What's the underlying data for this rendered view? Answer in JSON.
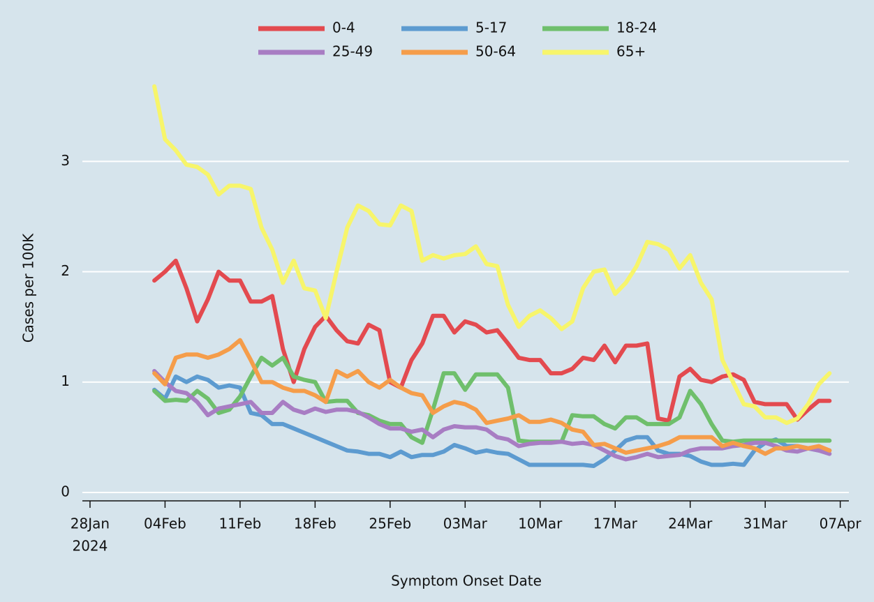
{
  "chart_data": {
    "type": "line",
    "xlabel": "Symptom Onset Date",
    "ylabel": "Cases per 100K",
    "x_year_label": "2024",
    "x": [
      "2024-02-03",
      "2024-02-04",
      "2024-02-05",
      "2024-02-06",
      "2024-02-07",
      "2024-02-08",
      "2024-02-09",
      "2024-02-10",
      "2024-02-11",
      "2024-02-12",
      "2024-02-13",
      "2024-02-14",
      "2024-02-15",
      "2024-02-16",
      "2024-02-17",
      "2024-02-18",
      "2024-02-19",
      "2024-02-20",
      "2024-02-21",
      "2024-02-22",
      "2024-02-23",
      "2024-02-24",
      "2024-02-25",
      "2024-02-26",
      "2024-02-27",
      "2024-02-28",
      "2024-02-29",
      "2024-03-01",
      "2024-03-02",
      "2024-03-03",
      "2024-03-04",
      "2024-03-05",
      "2024-03-06",
      "2024-03-07",
      "2024-03-08",
      "2024-03-09",
      "2024-03-10",
      "2024-03-11",
      "2024-03-12",
      "2024-03-13",
      "2024-03-14",
      "2024-03-15",
      "2024-03-16",
      "2024-03-17",
      "2024-03-18",
      "2024-03-19",
      "2024-03-20",
      "2024-03-21",
      "2024-03-22",
      "2024-03-23",
      "2024-03-24",
      "2024-03-25",
      "2024-03-26",
      "2024-03-27",
      "2024-03-28",
      "2024-03-29",
      "2024-03-30",
      "2024-03-31",
      "2024-04-01",
      "2024-04-02",
      "2024-04-03",
      "2024-04-04",
      "2024-04-05",
      "2024-04-06"
    ],
    "series": [
      {
        "name": "0-4",
        "color": "#e34a4f",
        "values": [
          1.92,
          2.0,
          2.1,
          1.85,
          1.55,
          1.75,
          2.0,
          1.92,
          1.92,
          1.73,
          1.73,
          1.78,
          1.3,
          1.0,
          1.3,
          1.5,
          1.6,
          1.47,
          1.37,
          1.35,
          1.52,
          1.47,
          1.0,
          0.95,
          1.2,
          1.35,
          1.6,
          1.6,
          1.45,
          1.55,
          1.52,
          1.45,
          1.47,
          1.35,
          1.22,
          1.2,
          1.2,
          1.08,
          1.08,
          1.12,
          1.22,
          1.2,
          1.33,
          1.18,
          1.33,
          1.33,
          1.35,
          0.67,
          0.65,
          1.05,
          1.12,
          1.02,
          1.0,
          1.05,
          1.07,
          1.02,
          0.82,
          0.8,
          0.8,
          0.8,
          0.66,
          0.75,
          0.83,
          0.83
        ]
      },
      {
        "name": "5-17",
        "color": "#5d9bd0",
        "values": [
          0.93,
          0.85,
          1.05,
          1.0,
          1.05,
          1.02,
          0.95,
          0.97,
          0.95,
          0.72,
          0.7,
          0.62,
          0.62,
          0.58,
          0.54,
          0.5,
          0.46,
          0.42,
          0.38,
          0.37,
          0.35,
          0.35,
          0.32,
          0.37,
          0.32,
          0.34,
          0.34,
          0.37,
          0.43,
          0.4,
          0.36,
          0.38,
          0.36,
          0.35,
          0.3,
          0.25,
          0.25,
          0.25,
          0.25,
          0.25,
          0.25,
          0.24,
          0.3,
          0.38,
          0.47,
          0.5,
          0.5,
          0.38,
          0.35,
          0.35,
          0.33,
          0.28,
          0.25,
          0.25,
          0.26,
          0.25,
          0.38,
          0.45,
          0.48,
          0.42,
          0.42,
          0.4,
          0.38,
          0.38
        ]
      },
      {
        "name": "18-24",
        "color": "#6fbf6c",
        "values": [
          0.92,
          0.83,
          0.84,
          0.83,
          0.92,
          0.85,
          0.72,
          0.75,
          0.87,
          1.05,
          1.22,
          1.15,
          1.22,
          1.05,
          1.02,
          1.0,
          0.82,
          0.83,
          0.83,
          0.72,
          0.7,
          0.65,
          0.62,
          0.62,
          0.5,
          0.45,
          0.75,
          1.08,
          1.08,
          0.93,
          1.07,
          1.07,
          1.07,
          0.95,
          0.47,
          0.46,
          0.46,
          0.46,
          0.46,
          0.7,
          0.69,
          0.69,
          0.62,
          0.58,
          0.68,
          0.68,
          0.62,
          0.62,
          0.62,
          0.68,
          0.92,
          0.8,
          0.62,
          0.47,
          0.46,
          0.47,
          0.47,
          0.47,
          0.47,
          0.47,
          0.47,
          0.47,
          0.47,
          0.47
        ]
      },
      {
        "name": "25-49",
        "color": "#a87dc3",
        "values": [
          1.1,
          1.0,
          0.92,
          0.9,
          0.82,
          0.7,
          0.76,
          0.78,
          0.8,
          0.82,
          0.72,
          0.72,
          0.82,
          0.75,
          0.72,
          0.76,
          0.73,
          0.75,
          0.75,
          0.73,
          0.68,
          0.62,
          0.58,
          0.58,
          0.55,
          0.57,
          0.5,
          0.57,
          0.6,
          0.59,
          0.59,
          0.57,
          0.5,
          0.48,
          0.42,
          0.44,
          0.45,
          0.45,
          0.46,
          0.44,
          0.45,
          0.43,
          0.38,
          0.33,
          0.3,
          0.32,
          0.35,
          0.32,
          0.33,
          0.34,
          0.38,
          0.4,
          0.4,
          0.4,
          0.42,
          0.43,
          0.45,
          0.45,
          0.42,
          0.38,
          0.37,
          0.4,
          0.38,
          0.35
        ]
      },
      {
        "name": "50-64",
        "color": "#f59d4a",
        "values": [
          1.08,
          0.98,
          1.22,
          1.25,
          1.25,
          1.22,
          1.25,
          1.3,
          1.38,
          1.2,
          1.0,
          1.0,
          0.95,
          0.92,
          0.92,
          0.88,
          0.82,
          1.1,
          1.05,
          1.1,
          1.0,
          0.95,
          1.02,
          0.95,
          0.9,
          0.88,
          0.72,
          0.78,
          0.82,
          0.8,
          0.75,
          0.63,
          0.65,
          0.67,
          0.7,
          0.64,
          0.64,
          0.66,
          0.63,
          0.57,
          0.55,
          0.43,
          0.44,
          0.4,
          0.36,
          0.38,
          0.4,
          0.42,
          0.45,
          0.5,
          0.5,
          0.5,
          0.5,
          0.42,
          0.45,
          0.42,
          0.4,
          0.35,
          0.4,
          0.4,
          0.42,
          0.4,
          0.42,
          0.38
        ]
      },
      {
        "name": "65+",
        "color": "#f7f56b",
        "values": [
          3.68,
          3.2,
          3.1,
          2.97,
          2.95,
          2.88,
          2.7,
          2.78,
          2.78,
          2.75,
          2.4,
          2.2,
          1.9,
          2.1,
          1.85,
          1.83,
          1.58,
          2.0,
          2.4,
          2.6,
          2.55,
          2.43,
          2.42,
          2.6,
          2.55,
          2.1,
          2.15,
          2.12,
          2.15,
          2.16,
          2.23,
          2.07,
          2.05,
          1.7,
          1.5,
          1.6,
          1.65,
          1.58,
          1.48,
          1.55,
          1.85,
          2.0,
          2.02,
          1.8,
          1.9,
          2.05,
          2.27,
          2.25,
          2.2,
          2.03,
          2.15,
          1.9,
          1.75,
          1.2,
          1.0,
          0.8,
          0.78,
          0.68,
          0.68,
          0.63,
          0.67,
          0.8,
          0.98,
          1.08
        ]
      }
    ],
    "xlim": [
      "2024-01-27",
      "2024-04-08"
    ],
    "xticks": [
      {
        "value": "2024-01-28",
        "label": "28Jan"
      },
      {
        "value": "2024-02-04",
        "label": "04Feb"
      },
      {
        "value": "2024-02-11",
        "label": "11Feb"
      },
      {
        "value": "2024-02-18",
        "label": "18Feb"
      },
      {
        "value": "2024-02-25",
        "label": "25Feb"
      },
      {
        "value": "2024-03-03",
        "label": "03Mar"
      },
      {
        "value": "2024-03-10",
        "label": "10Mar"
      },
      {
        "value": "2024-03-17",
        "label": "17Mar"
      },
      {
        "value": "2024-03-24",
        "label": "24Mar"
      },
      {
        "value": "2024-03-31",
        "label": "31Mar"
      },
      {
        "value": "2024-04-07",
        "label": "07Apr"
      }
    ],
    "ylim": [
      -0.08,
      3.75
    ],
    "yticks": [
      0,
      1,
      2,
      3
    ],
    "grid": true,
    "legend": "top"
  }
}
